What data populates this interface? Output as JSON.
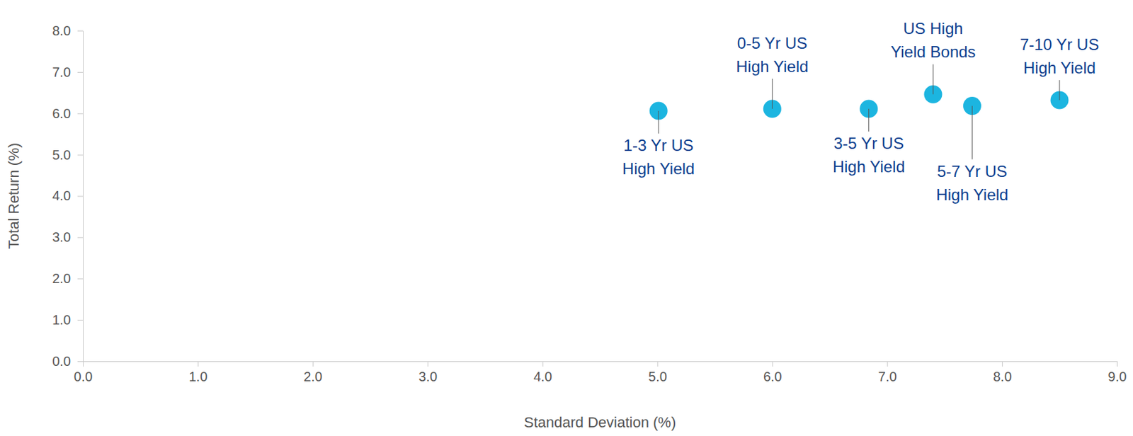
{
  "chart_data": {
    "type": "scatter",
    "x_label": "Standard Deviation (%)",
    "y_label": "Total Return (%)",
    "labels": [
      [
        "1-3 Yr US",
        "High Yield"
      ],
      [
        "0-5 Yr US",
        "High Yield"
      ],
      [
        "3-5 Yr US",
        "High Yield"
      ],
      [
        "US High",
        "Yield Bonds"
      ],
      [
        "5-7 Yr US",
        "High Yield"
      ],
      [
        "7-10 Yr US",
        "High Yield"
      ]
    ],
    "x": [
      5.01,
      6.0,
      6.84,
      7.4,
      7.74,
      8.5
    ],
    "y": [
      6.06,
      6.11,
      6.11,
      6.46,
      6.18,
      6.32
    ],
    "color": "#1cb5e0",
    "xlim": [
      0,
      9
    ],
    "xticks": [
      {
        "value": 0,
        "label": "0.0"
      },
      {
        "value": 1,
        "label": "1.0"
      },
      {
        "value": 2,
        "label": "2.0"
      },
      {
        "value": 3,
        "label": "3.0"
      },
      {
        "value": 4,
        "label": "4.0"
      },
      {
        "value": 5,
        "label": "5.0"
      },
      {
        "value": 6,
        "label": "6.0"
      },
      {
        "value": 7,
        "label": "7.0"
      },
      {
        "value": 8,
        "label": "8.0"
      },
      {
        "value": 9,
        "label": "9.0"
      }
    ],
    "ylim": [
      0,
      8
    ],
    "yticks": [
      {
        "value": 0,
        "label": "0.0"
      },
      {
        "value": 1,
        "label": "1.0"
      },
      {
        "value": 2,
        "label": "2.0"
      },
      {
        "value": 3,
        "label": "3.0"
      },
      {
        "value": 4,
        "label": "4.0"
      },
      {
        "value": 5,
        "label": "5.0"
      },
      {
        "value": 6,
        "label": "6.0"
      },
      {
        "value": 7,
        "label": "7.0"
      },
      {
        "value": 8,
        "label": "8.0"
      }
    ],
    "grid": false
  }
}
